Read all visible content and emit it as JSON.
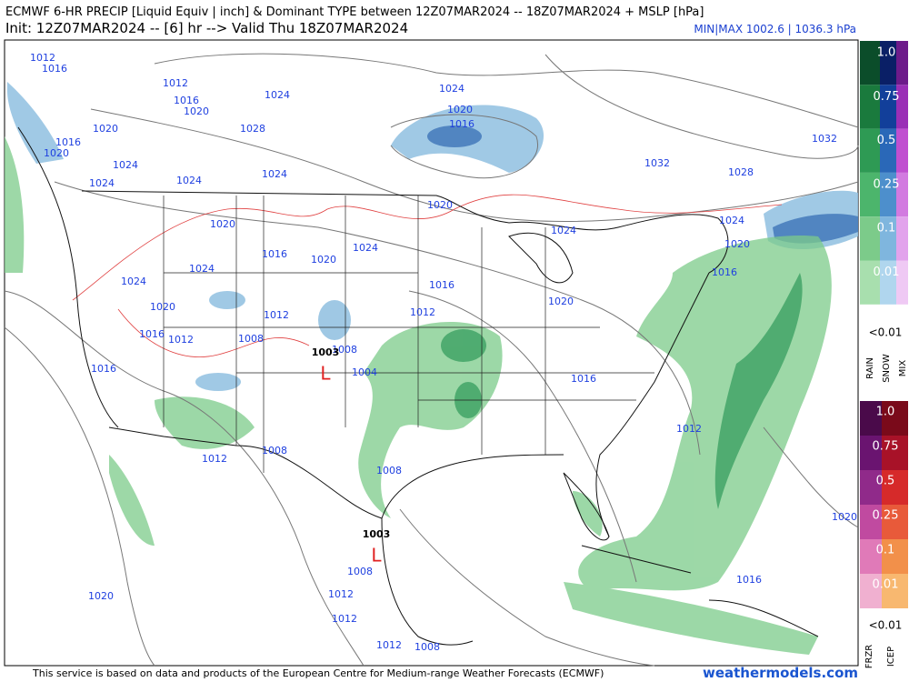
{
  "header": {
    "title": "ECMWF 6-HR PRECIP [Liquid Equiv | inch] & Dominant TYPE between 12Z07MAR2024 -- 18Z07MAR2024 + MSLP [hPa]",
    "subtitle": "Init: 12Z07MAR2024 -- [6] hr --> Valid Thu 18Z07MAR2024",
    "minmax": "MIN|MAX 1002.6 | 1036.3 hPa"
  },
  "legend": {
    "upper_labels": [
      "1.0",
      "0.75",
      "0.5",
      "0.25",
      "0.1",
      "0.01"
    ],
    "upper_min": "<0.01",
    "upper_types": [
      "RAIN",
      "SNOW",
      "MIX"
    ],
    "lower_labels": [
      "1.0",
      "0.75",
      "0.5",
      "0.25",
      "0.1",
      "0.01"
    ],
    "lower_min": "<0.01",
    "lower_types": [
      "FRZR",
      "ICEP"
    ]
  },
  "map": {
    "isobar_labels": [
      "1012",
      "1016",
      "1012",
      "1016",
      "1020",
      "1024",
      "1020",
      "1016",
      "1020",
      "1024",
      "1024",
      "1028",
      "1024",
      "1024",
      "1024",
      "1020",
      "1016",
      "1032",
      "1032",
      "1028",
      "1020",
      "1024",
      "1024",
      "1020",
      "1016",
      "1020",
      "1024",
      "1016",
      "1020",
      "1024",
      "1024",
      "1020",
      "1016",
      "1012",
      "1020",
      "1016",
      "1012",
      "1012",
      "1008",
      "1008",
      "1003",
      "1004",
      "1016",
      "1016",
      "1012",
      "1008",
      "1012",
      "1008",
      "1003",
      "1008",
      "1012",
      "1012",
      "1012",
      "1008",
      "1020",
      "1020",
      "1016"
    ],
    "low_markers": [
      "L",
      "L"
    ]
  },
  "footer": {
    "credit": "This service is based on data and products of the European Centre for Medium-range Weather Forecasts (ECMWF)",
    "brand": "weathermodels.com"
  }
}
